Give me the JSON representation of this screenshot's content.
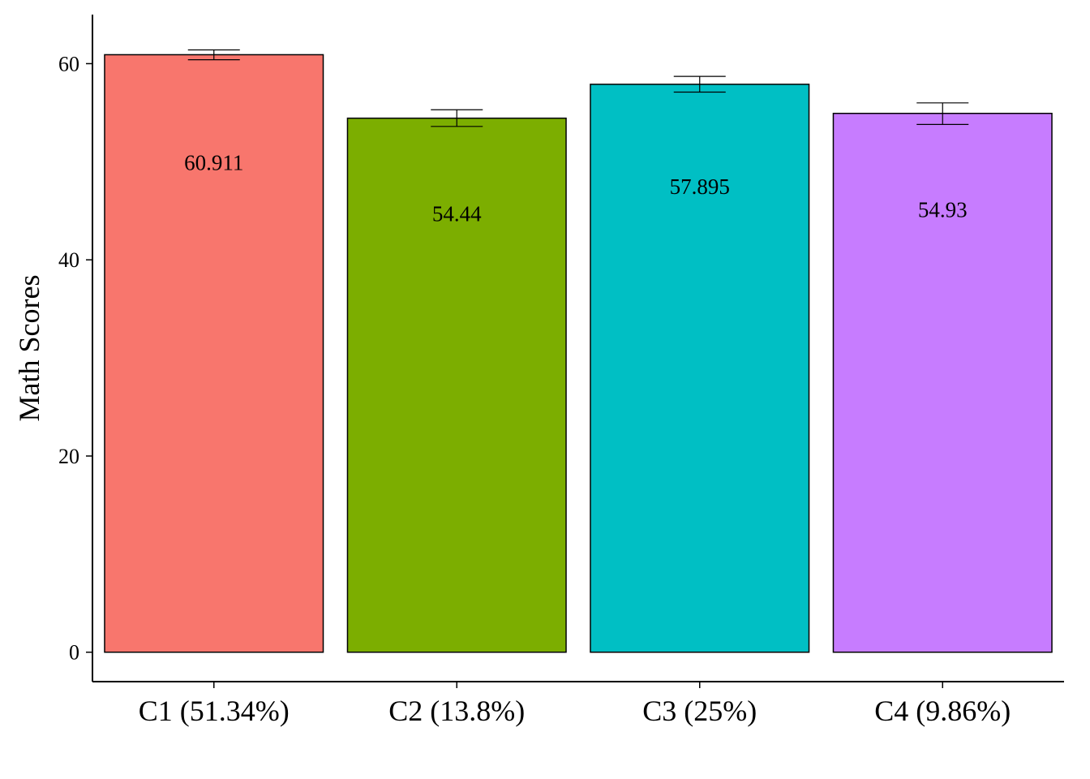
{
  "chart_data": {
    "type": "bar",
    "title": "",
    "xlabel": "",
    "ylabel": "Math Scores",
    "ylim": [
      -3,
      65
    ],
    "yticks": [
      0,
      20,
      40,
      60
    ],
    "grid": false,
    "legend": "none",
    "categories": [
      "C1 (51.34%)",
      "C2 (13.8%)",
      "C3 (25%)",
      "C4 (9.86%)"
    ],
    "values": [
      60.911,
      54.44,
      57.895,
      54.93
    ],
    "data_labels": [
      "60.911",
      "54.44",
      "57.895",
      "54.93"
    ],
    "error_low": [
      60.4,
      53.6,
      57.1,
      53.8
    ],
    "error_high": [
      61.4,
      55.3,
      58.7,
      56.0
    ],
    "colors": [
      "#F8766D",
      "#7CAE00",
      "#00BFC4",
      "#C77CFF"
    ]
  }
}
